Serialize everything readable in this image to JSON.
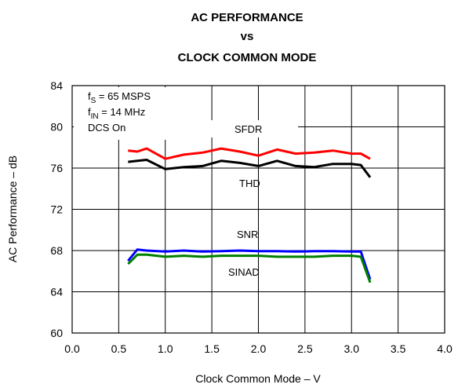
{
  "chart_data": {
    "type": "line",
    "title_lines": [
      "AC PERFORMANCE",
      "vs",
      "CLOCK COMMON MODE"
    ],
    "xlabel": "Clock Common Mode – V",
    "ylabel": "AC Performance – dB",
    "xlim": [
      0,
      4
    ],
    "ylim": [
      60,
      84
    ],
    "xticks": [
      "0.0",
      "0.5",
      "1.0",
      "1.5",
      "2.0",
      "2.5",
      "3.0",
      "3.5",
      "4.0"
    ],
    "yticks": [
      "60",
      "64",
      "68",
      "72",
      "76",
      "80",
      "84"
    ],
    "grid": true,
    "conditions": [
      {
        "base": "f",
        "sub": "S",
        "rest": " = 65 MSPS"
      },
      {
        "base": "f",
        "sub": "IN",
        "rest": " = 14 MHz"
      },
      {
        "base": "DCS On",
        "sub": "",
        "rest": ""
      }
    ],
    "series": [
      {
        "name": "SFDR",
        "color": "#ff0000",
        "x": [
          0.6,
          0.7,
          0.8,
          1.0,
          1.2,
          1.4,
          1.6,
          1.8,
          2.0,
          2.2,
          2.4,
          2.6,
          2.8,
          3.0,
          3.1,
          3.2
        ],
        "y": [
          77.7,
          77.6,
          77.9,
          76.9,
          77.3,
          77.5,
          77.9,
          77.6,
          77.2,
          77.8,
          77.4,
          77.5,
          77.7,
          77.4,
          77.4,
          76.9
        ]
      },
      {
        "name": "THD",
        "color": "#000000",
        "x": [
          0.6,
          0.7,
          0.8,
          1.0,
          1.2,
          1.4,
          1.6,
          1.8,
          2.0,
          2.2,
          2.4,
          2.6,
          2.8,
          3.0,
          3.1,
          3.2
        ],
        "y": [
          76.6,
          76.7,
          76.8,
          75.9,
          76.1,
          76.2,
          76.7,
          76.5,
          76.2,
          76.7,
          76.2,
          76.1,
          76.4,
          76.4,
          76.3,
          75.1
        ]
      },
      {
        "name": "SNR",
        "color": "#0000ff",
        "x": [
          0.6,
          0.7,
          0.8,
          1.0,
          1.2,
          1.4,
          1.6,
          1.8,
          2.0,
          2.2,
          2.4,
          2.6,
          2.8,
          3.0,
          3.1,
          3.2
        ],
        "y": [
          67.0,
          68.1,
          68.0,
          67.9,
          68.0,
          67.9,
          67.95,
          68.0,
          67.95,
          67.95,
          67.9,
          67.95,
          67.95,
          67.9,
          67.9,
          65.2
        ]
      },
      {
        "name": "SINAD",
        "color": "#008000",
        "x": [
          0.6,
          0.7,
          0.8,
          1.0,
          1.2,
          1.4,
          1.6,
          1.8,
          2.0,
          2.2,
          2.4,
          2.6,
          2.8,
          3.0,
          3.1,
          3.2
        ],
        "y": [
          66.7,
          67.6,
          67.6,
          67.4,
          67.5,
          67.4,
          67.5,
          67.5,
          67.5,
          67.4,
          67.4,
          67.4,
          67.5,
          67.5,
          67.4,
          64.9
        ]
      }
    ]
  }
}
